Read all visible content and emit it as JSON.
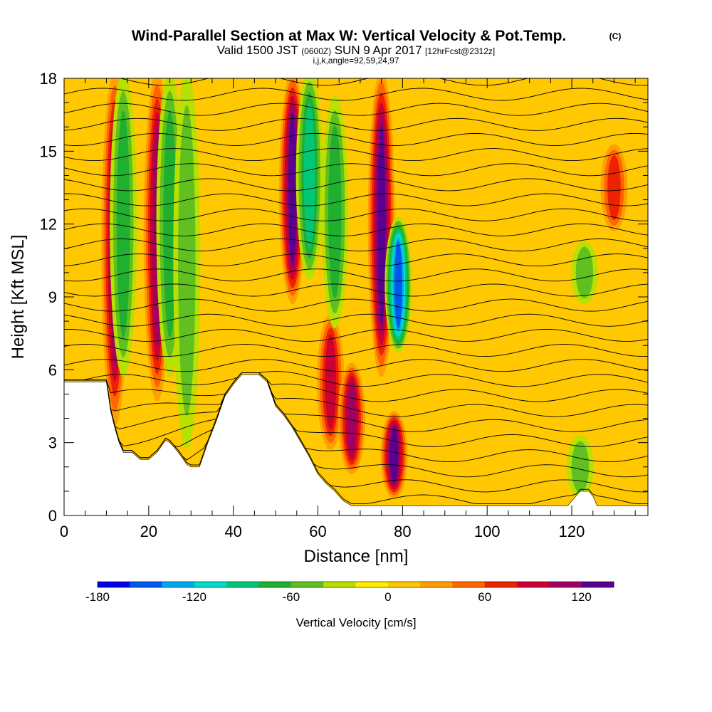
{
  "header": {
    "title": "Wind-Parallel Section at Max W: Vertical Velocity & Pot.Temp.",
    "copyright": "(C)",
    "valid_prefix": "Valid 1500 JST",
    "valid_zulu": "(0600Z)",
    "valid_date": "SUN 9 Apr 2017",
    "forecast": "[12hrFcst@2312z]",
    "indices": "i,j,k,angle=92,59,24,97"
  },
  "chart_data": {
    "type": "heatmap",
    "title": "Wind-Parallel Section at Max W: Vertical Velocity & Pot.Temp.",
    "xlabel": "Distance [nm]",
    "ylabel": "Height [Kft MSL]",
    "xlim": [
      0,
      138
    ],
    "ylim": [
      0,
      18
    ],
    "x_ticks": [
      0,
      20,
      40,
      60,
      80,
      100,
      120
    ],
    "y_ticks": [
      0,
      3,
      6,
      9,
      12,
      15,
      18
    ],
    "grid": false,
    "colorbar": {
      "label": "Vertical Velocity [cm/s]",
      "ticks": [
        -180,
        -120,
        -60,
        0,
        60,
        120
      ],
      "range": [
        -180,
        140
      ],
      "bin_width": 20,
      "colors": [
        "#0000ee",
        "#0058ee",
        "#00aaee",
        "#00ddcc",
        "#00c878",
        "#20b030",
        "#60c020",
        "#b8e000",
        "#ffee00",
        "#ffc800",
        "#ffa000",
        "#ff6600",
        "#ee2200",
        "#cc0033",
        "#a00060",
        "#5a0090"
      ]
    },
    "vertical_velocity_features": [
      {
        "x": 12,
        "z_bottom": 4,
        "z_top": 18,
        "w": 100
      },
      {
        "x": 14,
        "z_bottom": 6,
        "z_top": 18,
        "w": -70
      },
      {
        "x": 22,
        "z_bottom": 5,
        "z_top": 18,
        "w": 100
      },
      {
        "x": 25,
        "z_bottom": 6,
        "z_top": 18,
        "w": -60
      },
      {
        "x": 29,
        "z_bottom": 3,
        "z_top": 18,
        "w": -50
      },
      {
        "x": 54,
        "z_bottom": 9,
        "z_top": 18,
        "w": 130
      },
      {
        "x": 58,
        "z_bottom": 10,
        "z_top": 18,
        "w": -80
      },
      {
        "x": 63,
        "z_bottom": 3,
        "z_top": 8,
        "w": 90
      },
      {
        "x": 68,
        "z_bottom": 2,
        "z_top": 6,
        "w": 100
      },
      {
        "x": 64,
        "z_bottom": 8,
        "z_top": 17,
        "w": -60
      },
      {
        "x": 75,
        "z_bottom": 6,
        "z_top": 18,
        "w": 120
      },
      {
        "x": 79,
        "z_bottom": 7,
        "z_top": 12,
        "w": -140
      },
      {
        "x": 78,
        "z_bottom": 1,
        "z_top": 4,
        "w": 120
      },
      {
        "x": 130,
        "z_bottom": 12,
        "z_top": 15,
        "w": 60
      },
      {
        "x": 123,
        "z_bottom": 9,
        "z_top": 11,
        "w": -40
      },
      {
        "x": 122,
        "z_bottom": 1,
        "z_top": 3,
        "w": -50
      }
    ],
    "potential_temperature_contours": {
      "count": 30,
      "interval_k": 1,
      "color": "black"
    },
    "terrain_kft": [
      [
        0,
        5.5
      ],
      [
        4,
        5.5
      ],
      [
        10,
        5.5
      ],
      [
        11,
        4.3
      ],
      [
        12,
        3.6
      ],
      [
        13,
        3
      ],
      [
        14,
        2.6
      ],
      [
        16,
        2.6
      ],
      [
        18,
        2.3
      ],
      [
        20,
        2.3
      ],
      [
        22,
        2.6
      ],
      [
        24,
        3.1
      ],
      [
        25,
        3
      ],
      [
        27,
        2.6
      ],
      [
        29,
        2.1
      ],
      [
        30,
        2
      ],
      [
        32,
        2
      ],
      [
        34,
        3
      ],
      [
        36,
        3.9
      ],
      [
        38,
        4.9
      ],
      [
        40,
        5.4
      ],
      [
        42,
        5.8
      ],
      [
        44,
        5.8
      ],
      [
        46,
        5.8
      ],
      [
        48,
        5.5
      ],
      [
        50,
        4.5
      ],
      [
        52,
        4.1
      ],
      [
        54,
        3.6
      ],
      [
        56,
        3
      ],
      [
        58,
        2.4
      ],
      [
        60,
        1.7
      ],
      [
        62,
        1.3
      ],
      [
        64,
        1
      ],
      [
        66,
        0.6
      ],
      [
        68,
        0.4
      ],
      [
        70,
        0.4
      ],
      [
        80,
        0.4
      ],
      [
        90,
        0.4
      ],
      [
        100,
        0.4
      ],
      [
        110,
        0.4
      ],
      [
        119,
        0.4
      ],
      [
        121,
        0.8
      ],
      [
        122,
        1
      ],
      [
        124,
        1
      ],
      [
        125,
        0.8
      ],
      [
        126,
        0.4
      ],
      [
        130,
        0.4
      ],
      [
        138,
        0.4
      ]
    ]
  }
}
